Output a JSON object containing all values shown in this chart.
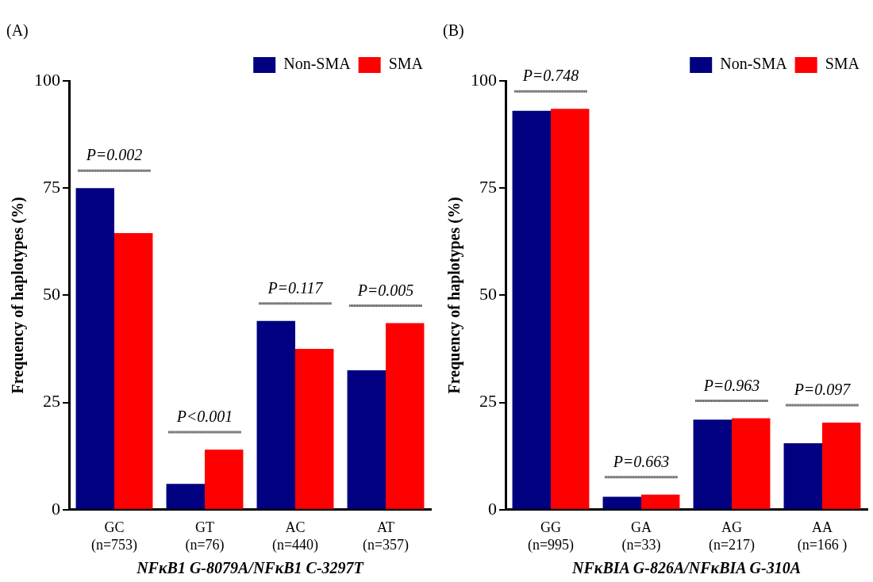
{
  "chart_data": [
    {
      "type": "bar",
      "title": "(A)",
      "categories": [
        "GC (n=753)",
        "GT (n=76)",
        "AC (n=440)",
        "AT (n=357)"
      ],
      "series": [
        {
          "name": "Non-SMA",
          "color": "#000080",
          "values": [
            75,
            6,
            44,
            32.5
          ]
        },
        {
          "name": "SMA",
          "color": "#ff0000",
          "values": [
            64.5,
            14,
            37.5,
            43.5
          ]
        }
      ],
      "xlabel": "NFκB1 G-8079A/NFκB1 C-3297T",
      "ylabel": "Frequency of haplotypes (%)",
      "ylim": [
        0,
        100
      ],
      "yticks": [
        0,
        25,
        50,
        75,
        100
      ],
      "grid": false,
      "legend": "top right",
      "annotations": [
        "P=0.002",
        "P<0.001",
        "P=0.117",
        "P=0.005"
      ]
    },
    {
      "type": "bar",
      "title": "(B)",
      "categories": [
        "GG (n=995)",
        "GA (n=33)",
        "AG (n=217)",
        "AA (n=166 )"
      ],
      "series": [
        {
          "name": "Non-SMA",
          "color": "#000080",
          "values": [
            93,
            3,
            21,
            15.5
          ]
        },
        {
          "name": "SMA",
          "color": "#ff0000",
          "values": [
            93.5,
            3.5,
            21.3,
            20.3
          ]
        }
      ],
      "xlabel": "NFκBIA G-826A/NFκBIA G-310A",
      "ylabel": "Frequency of haplotypes (%)",
      "ylim": [
        0,
        100
      ],
      "yticks": [
        0,
        25,
        50,
        75,
        100
      ],
      "grid": false,
      "legend": "top right",
      "annotations": [
        "P=0.748",
        "P=0.663",
        "P=0.963",
        "P=0.097"
      ]
    }
  ]
}
